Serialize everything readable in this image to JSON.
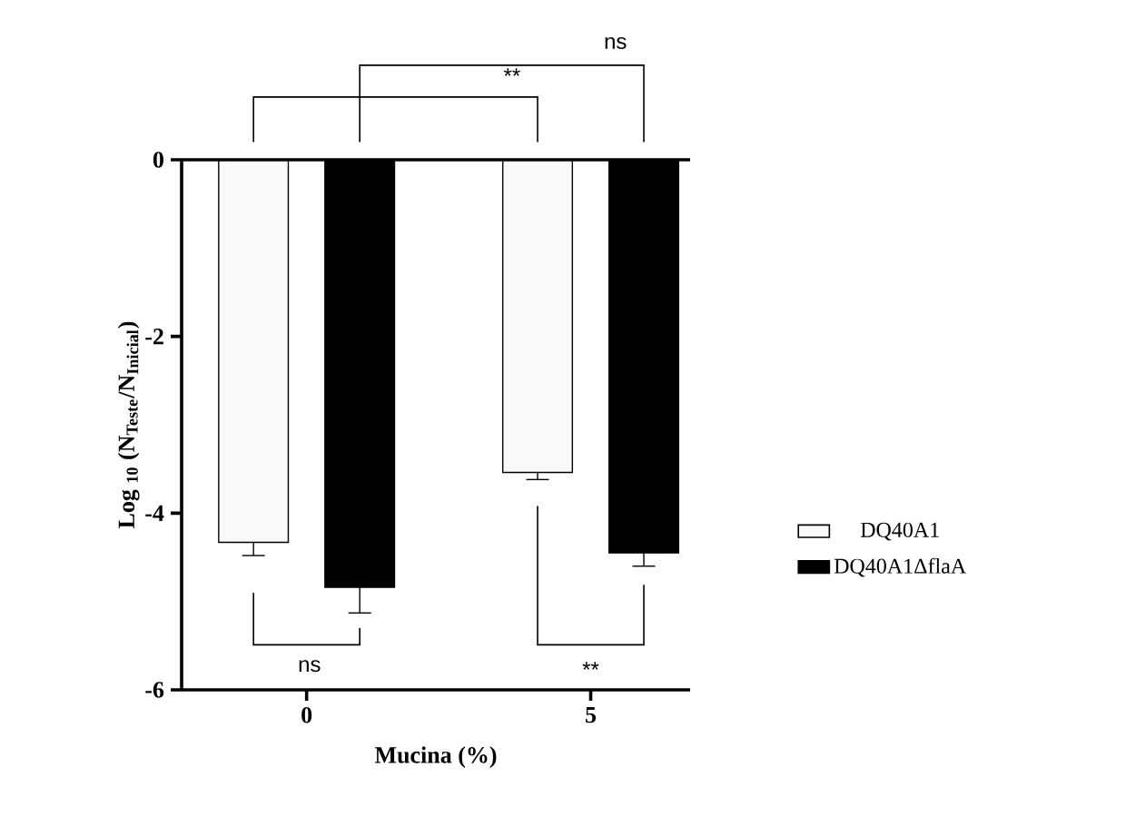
{
  "chart_data": {
    "type": "bar",
    "xlabel": "Mucina (%)",
    "ylabel": "Log $_{10}$ (N$_{Teste}$/N$_{Inicial}$)",
    "categories": [
      "0",
      "5"
    ],
    "series": [
      {
        "name": "DQ40A1",
        "color": "#f9f9f9",
        "values": [
          -4.33,
          -3.54
        ],
        "errors": [
          [
            -4.48,
            -4.33
          ],
          [
            -3.62,
            -3.54
          ]
        ]
      },
      {
        "name": "DQ40A1ΔflaA",
        "color": "#000000",
        "values": [
          -4.84,
          -4.45
        ],
        "errors": [
          [
            -5.13,
            -4.84
          ],
          [
            -4.6,
            -4.45
          ]
        ]
      }
    ],
    "ylim": [
      -6,
      0
    ],
    "yticks": [
      0,
      -2,
      -4,
      -6
    ],
    "legend": "right",
    "annotations": [
      "**",
      "ns",
      "ns",
      "**"
    ]
  }
}
